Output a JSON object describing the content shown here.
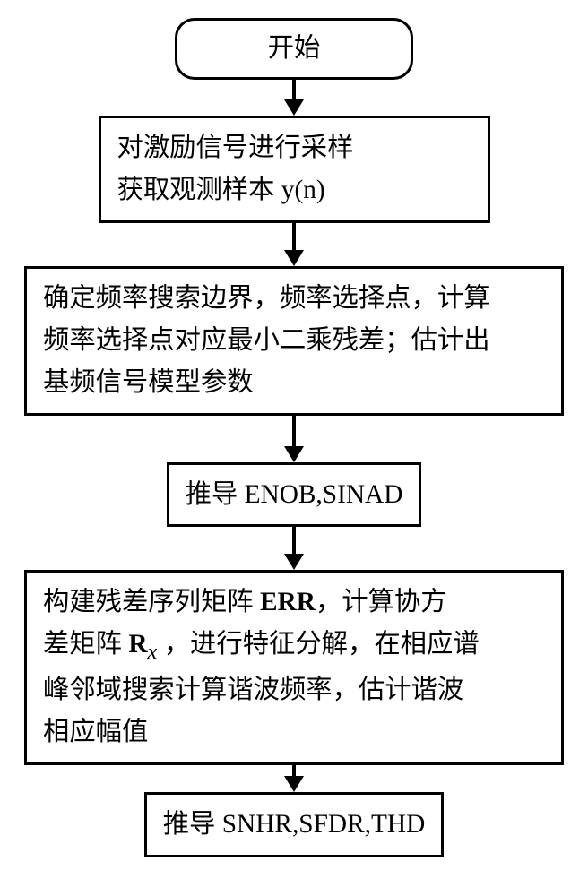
{
  "flowchart": {
    "type": "flowchart",
    "background_color": "#ffffff",
    "border_color": "#000000",
    "border_width": 3,
    "font_family": "SimSun",
    "font_size_pt": 22,
    "arrow": {
      "line_width": 4,
      "head_width": 22,
      "head_height": 18,
      "color": "#000000"
    },
    "nodes": [
      {
        "id": "start",
        "shape": "rounded",
        "width": "narrow",
        "text": "开始",
        "align": "center",
        "arrow_after": 40
      },
      {
        "id": "step1",
        "shape": "rect",
        "width": "medium",
        "text": "对激励信号进行采样\n获取观测样本 y(n)",
        "align": "left",
        "arrow_after": 48
      },
      {
        "id": "step2",
        "shape": "rect",
        "width": "wide",
        "text": "确定频率搜索边界，频率选择点，计算\n频率选择点对应最小二乘残差；估计出\n基频信号模型参数",
        "align": "left",
        "arrow_after": 52
      },
      {
        "id": "step3",
        "shape": "rect",
        "width": "narrow",
        "text": "推导 ENOB,SINAD",
        "align": "left",
        "arrow_after": 48
      },
      {
        "id": "step4",
        "shape": "rect",
        "width": "wide",
        "text": "构建残差序列矩阵 ERR，计算协方\n差矩阵 Rₓ ，进行特征分解，在相应谱\n峰邻域搜索计算谐波频率，估计谐波\n相应幅值",
        "align": "left",
        "arrow_after": 30
      },
      {
        "id": "step5",
        "shape": "rect",
        "width": "narrow",
        "text": "推导 SNHR,SFDR,THD",
        "align": "left",
        "arrow_after": 0
      }
    ]
  }
}
